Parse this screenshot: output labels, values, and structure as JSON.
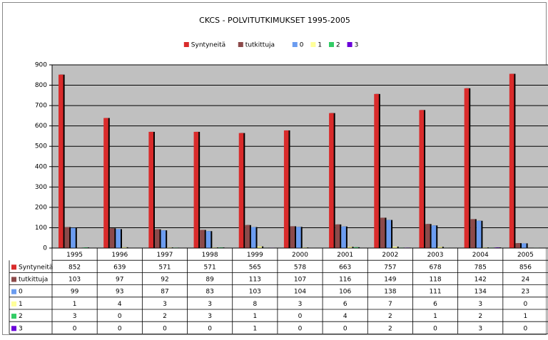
{
  "chart_data": {
    "type": "bar",
    "title": "CKCS - POLVITUTKIMUKSET 1995-2005",
    "categories": [
      "1995",
      "1996",
      "1997",
      "1998",
      "1999",
      "2000",
      "2001",
      "2002",
      "2003",
      "2004",
      "2005"
    ],
    "series": [
      {
        "name": "Syntyneitä",
        "color": "#d92b2b",
        "values": [
          852,
          639,
          571,
          571,
          565,
          578,
          663,
          757,
          678,
          785,
          856
        ]
      },
      {
        "name": "tutkittuja",
        "color": "#8c4a4a",
        "values": [
          103,
          97,
          92,
          89,
          113,
          107,
          116,
          149,
          118,
          142,
          24
        ]
      },
      {
        "name": "0",
        "color": "#6b9cf0",
        "values": [
          99,
          93,
          87,
          83,
          103,
          104,
          106,
          138,
          111,
          134,
          23
        ]
      },
      {
        "name": "1",
        "color": "#ffff99",
        "values": [
          1,
          4,
          3,
          3,
          8,
          3,
          6,
          7,
          6,
          3,
          0
        ]
      },
      {
        "name": "2",
        "color": "#33cc66",
        "values": [
          3,
          0,
          2,
          3,
          1,
          0,
          4,
          2,
          1,
          2,
          1
        ]
      },
      {
        "name": "3",
        "color": "#6a00d9",
        "values": [
          0,
          0,
          0,
          0,
          1,
          0,
          0,
          2,
          0,
          3,
          0
        ]
      }
    ],
    "ylim": [
      0,
      900
    ],
    "yticks": [
      0,
      100,
      200,
      300,
      400,
      500,
      600,
      700,
      800,
      900
    ],
    "grid": true,
    "legend": "top",
    "data_table": true
  }
}
